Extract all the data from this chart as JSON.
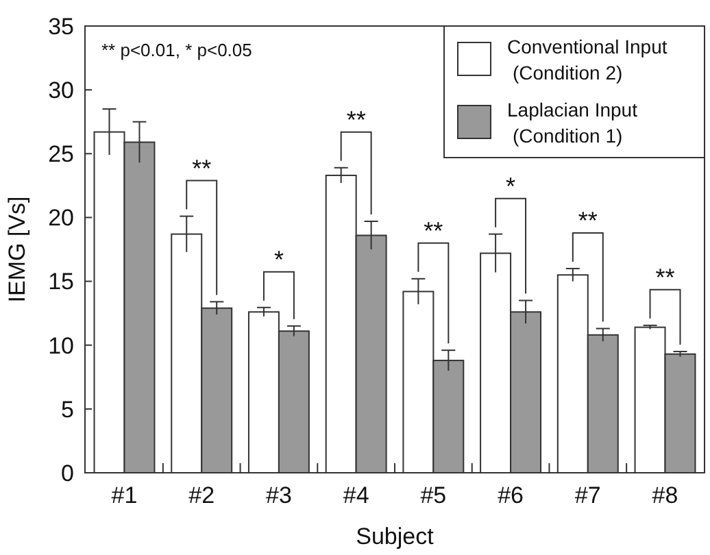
{
  "chart_data": {
    "type": "bar",
    "xlabel": "Subject",
    "ylabel": "IEMG [Vs]",
    "categories": [
      "#1",
      "#2",
      "#3",
      "#4",
      "#5",
      "#6",
      "#7",
      "#8"
    ],
    "series": [
      {
        "name": "Conventional Input\n(Condition 2)",
        "color": "#ffffff",
        "values": [
          26.7,
          18.7,
          12.6,
          23.3,
          14.2,
          17.2,
          15.5,
          11.4
        ],
        "errors": [
          1.8,
          1.4,
          0.35,
          0.6,
          1.0,
          1.5,
          0.5,
          0.15
        ]
      },
      {
        "name": "Laplacian Input\n(Condition 1)",
        "color": "#999999",
        "values": [
          25.9,
          12.9,
          11.1,
          18.6,
          8.8,
          12.6,
          10.8,
          9.3
        ],
        "errors": [
          1.6,
          0.5,
          0.4,
          1.1,
          0.8,
          0.9,
          0.5,
          0.2
        ]
      }
    ],
    "ylim": [
      0,
      35
    ],
    "yticks": [
      0,
      5,
      10,
      15,
      20,
      25,
      30,
      35
    ],
    "grid": false,
    "legend": "top right",
    "annotations": [
      "** p<0.01, * p<0.05",
      "**",
      "*",
      "**",
      "**",
      "*",
      "**",
      "**"
    ]
  }
}
